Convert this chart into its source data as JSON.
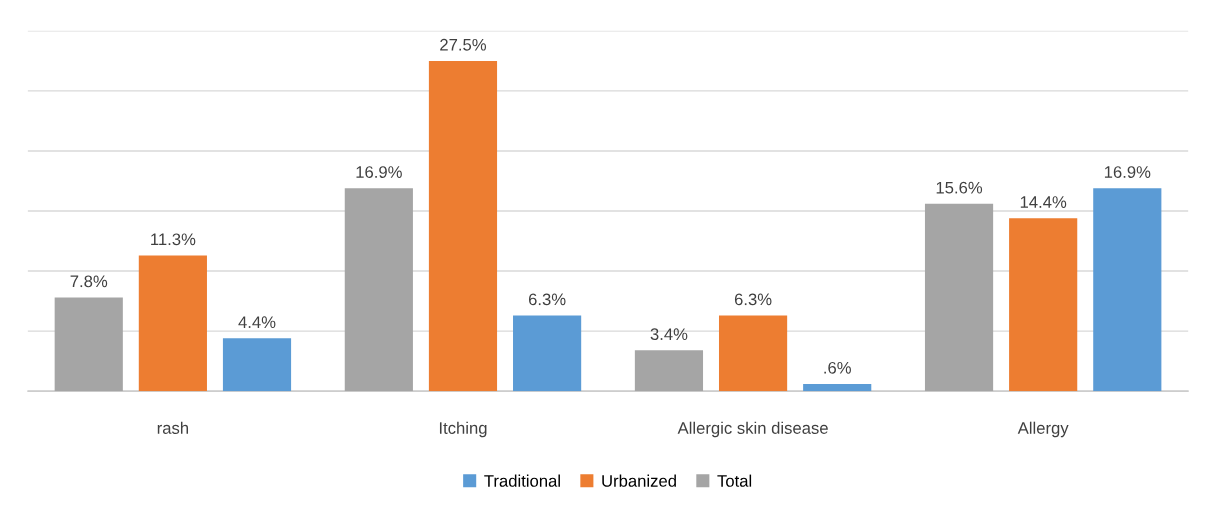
{
  "chart_data": {
    "type": "bar",
    "categories": [
      "rash",
      "Itching",
      "Allergic skin disease",
      "Allergy"
    ],
    "series": [
      {
        "name": "Total",
        "color": "#a5a5a5",
        "values": [
          7.8,
          16.9,
          3.4,
          15.6
        ],
        "value_labels": [
          "7.8%",
          "16.9%",
          "3.4%",
          "15.6%"
        ]
      },
      {
        "name": "Urbanized",
        "color": "#ed7d31",
        "values": [
          11.3,
          27.5,
          6.3,
          14.4
        ],
        "value_labels": [
          "11.3%",
          "27.5%",
          "6.3%",
          "14.4%"
        ]
      },
      {
        "name": "Traditional",
        "color": "#5b9bd5",
        "values": [
          4.4,
          6.3,
          0.6,
          16.9
        ],
        "value_labels": [
          "4.4%",
          "6.3%",
          ".6%",
          "16.9%"
        ]
      }
    ],
    "ylim": [
      0,
      30
    ],
    "yticks": [
      {
        "value": 0,
        "label": null
      },
      {
        "value": 5,
        "label": null
      },
      {
        "value": 10,
        "label": null
      },
      {
        "value": 15,
        "label": null
      },
      {
        "value": 20,
        "label": null
      },
      {
        "value": 25,
        "label": null
      },
      {
        "value": 30,
        "label": null
      }
    ],
    "tick_labels": "x",
    "grid": "y",
    "legend": "bottom"
  }
}
